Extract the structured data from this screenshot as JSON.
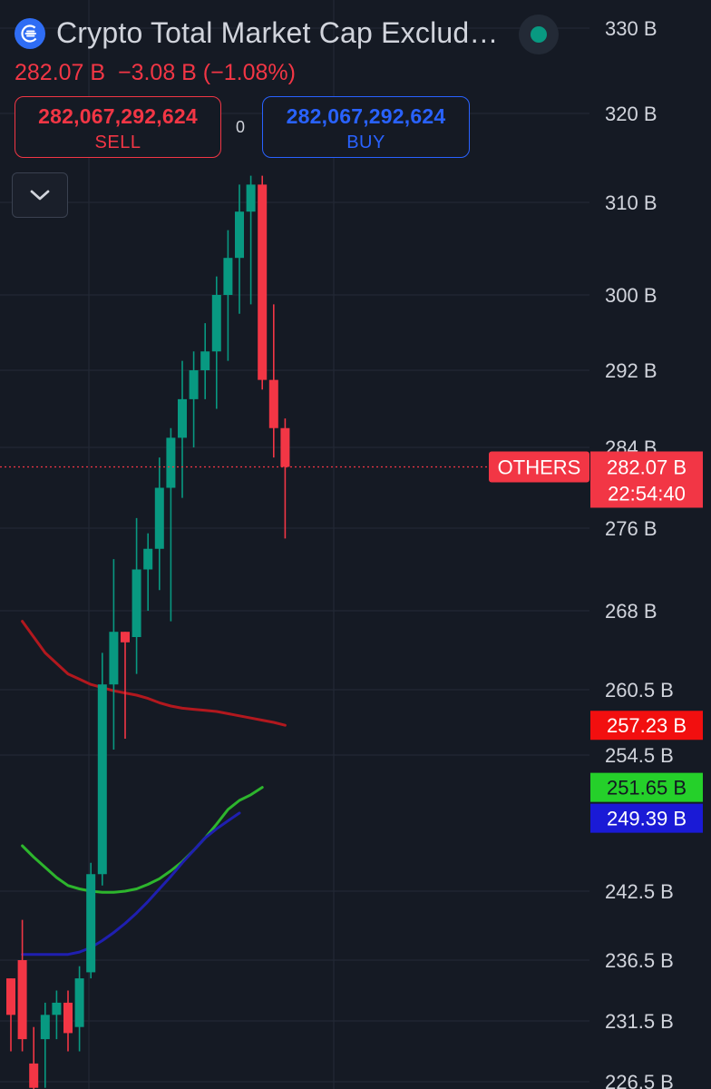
{
  "header": {
    "title": "Crypto Total Market Cap Exclud…",
    "quote": "282.07 B  −3.08 B (−1.08%)",
    "sell": {
      "price": "282,067,292,624",
      "label": "SELL"
    },
    "buy": {
      "price": "282,067,292,624",
      "label": "BUY"
    },
    "spread": "0"
  },
  "icons": {
    "symbol": "crypto-logo-icon",
    "status": "market-open-status-icon",
    "collapse": "chevron-down-icon"
  },
  "colors": {
    "background": "#151a24",
    "up": "#089981",
    "down": "#f23645",
    "sell": "#f23645",
    "buy": "#2962ff"
  },
  "chart_data": {
    "type": "candlestick",
    "y_ticks": [
      330,
      320,
      310,
      300,
      292,
      284,
      276,
      268,
      260.5,
      254.5,
      242.5,
      236.5,
      231.5,
      226.5
    ],
    "y_tick_labels": [
      "330 B",
      "320 B",
      "310 B",
      "300 B",
      "292 B",
      "284 B",
      "276 B",
      "268 B",
      "260.5 B",
      "254.5 B",
      "242.5 B",
      "236.5 B",
      "231.5 B",
      "226.5 B"
    ],
    "candles": [
      {
        "o": 235,
        "h": 235,
        "l": 229,
        "c": 232
      },
      {
        "o": 236.5,
        "h": 240,
        "l": 229,
        "c": 230
      },
      {
        "o": 228,
        "h": 231,
        "l": 225,
        "c": 226
      },
      {
        "o": 230,
        "h": 233,
        "l": 226,
        "c": 232
      },
      {
        "o": 232,
        "h": 234,
        "l": 230,
        "c": 233
      },
      {
        "o": 233,
        "h": 234,
        "l": 229,
        "c": 230.5
      },
      {
        "o": 231,
        "h": 236,
        "l": 229,
        "c": 235
      },
      {
        "o": 235.5,
        "h": 245,
        "l": 235,
        "c": 244
      },
      {
        "o": 244,
        "h": 264,
        "l": 243,
        "c": 261
      },
      {
        "o": 261,
        "h": 273,
        "l": 255,
        "c": 266
      },
      {
        "o": 266,
        "h": 266,
        "l": 256,
        "c": 265
      },
      {
        "o": 265.5,
        "h": 277,
        "l": 262,
        "c": 272
      },
      {
        "o": 272,
        "h": 275.5,
        "l": 268,
        "c": 274
      },
      {
        "o": 274,
        "h": 283,
        "l": 270,
        "c": 280
      },
      {
        "o": 280,
        "h": 286,
        "l": 267,
        "c": 285
      },
      {
        "o": 285,
        "h": 293,
        "l": 279,
        "c": 289
      },
      {
        "o": 289,
        "h": 294,
        "l": 284,
        "c": 292
      },
      {
        "o": 292,
        "h": 297,
        "l": 289,
        "c": 294
      },
      {
        "o": 294,
        "h": 302,
        "l": 288,
        "c": 300
      },
      {
        "o": 300,
        "h": 307,
        "l": 293,
        "c": 304
      },
      {
        "o": 304,
        "h": 312,
        "l": 298,
        "c": 309
      },
      {
        "o": 309,
        "h": 313,
        "l": 299,
        "c": 312
      },
      {
        "o": 312,
        "h": 313,
        "l": 290,
        "c": 291
      },
      {
        "o": 291,
        "h": 299,
        "l": 283,
        "c": 286
      },
      {
        "o": 286,
        "h": 287,
        "l": 275,
        "c": 282.07
      }
    ],
    "ma_lines": [
      {
        "color": "#b2181e",
        "label": "257.23 B",
        "points": [
          [
            -1,
            267
          ],
          [
            0,
            265.5
          ],
          [
            1,
            264
          ],
          [
            2,
            263
          ],
          [
            3,
            262
          ],
          [
            4,
            261.5
          ],
          [
            5,
            261
          ],
          [
            6,
            260.7
          ],
          [
            7,
            260.4
          ],
          [
            8,
            260.2
          ],
          [
            9,
            260
          ],
          [
            10,
            259.7
          ],
          [
            11,
            259.3
          ],
          [
            12,
            259
          ],
          [
            13,
            258.8
          ],
          [
            14,
            258.7
          ],
          [
            15,
            258.6
          ],
          [
            16,
            258.5
          ],
          [
            17,
            258.3
          ],
          [
            18,
            258.1
          ],
          [
            19,
            257.9
          ],
          [
            20,
            257.7
          ],
          [
            21,
            257.5
          ],
          [
            22,
            257.23
          ]
        ]
      },
      {
        "color": "#2db52d",
        "label": "251.65 B",
        "points": [
          [
            -1,
            246.5
          ],
          [
            0,
            245.5
          ],
          [
            1,
            244.6
          ],
          [
            2,
            243.7
          ],
          [
            3,
            243
          ],
          [
            4,
            242.7
          ],
          [
            5,
            242.5
          ],
          [
            6,
            242.4
          ],
          [
            7,
            242.4
          ],
          [
            8,
            242.5
          ],
          [
            9,
            242.7
          ],
          [
            10,
            243.1
          ],
          [
            11,
            243.6
          ],
          [
            12,
            244.3
          ],
          [
            13,
            245.1
          ],
          [
            14,
            246.1
          ],
          [
            15,
            247.2
          ],
          [
            16,
            248.4
          ],
          [
            17,
            249.7
          ],
          [
            18,
            250.5
          ],
          [
            19,
            251
          ],
          [
            20,
            251.65
          ]
        ]
      },
      {
        "color": "#1f1fb0",
        "label": "249.39 B",
        "points": [
          [
            -1,
            237
          ],
          [
            0,
            237
          ],
          [
            1,
            237
          ],
          [
            2,
            237
          ],
          [
            3,
            237
          ],
          [
            4,
            237.2
          ],
          [
            5,
            237.6
          ],
          [
            6,
            238.2
          ],
          [
            7,
            238.9
          ],
          [
            8,
            239.7
          ],
          [
            9,
            240.6
          ],
          [
            10,
            241.6
          ],
          [
            11,
            242.7
          ],
          [
            12,
            243.8
          ],
          [
            13,
            245
          ],
          [
            14,
            246.1
          ],
          [
            15,
            247.2
          ],
          [
            16,
            248
          ],
          [
            17,
            248.7
          ],
          [
            18,
            249.39
          ]
        ]
      }
    ],
    "last_price": {
      "symbol": "OTHERS",
      "value": 282.07,
      "value_label": "282.07 B",
      "countdown": "22:54:40"
    },
    "price_tags": [
      {
        "value": 257.23,
        "label": "257.23 B",
        "color": "#f20f0f",
        "text_color": "#ffffff"
      },
      {
        "value": 251.65,
        "label": "251.65 B",
        "color": "#25d02a",
        "text_color": "#131722"
      },
      {
        "value": 249.39,
        "label": "249.39 B",
        "color": "#1a1ad6",
        "text_color": "#ffffff"
      }
    ],
    "grid": true
  }
}
